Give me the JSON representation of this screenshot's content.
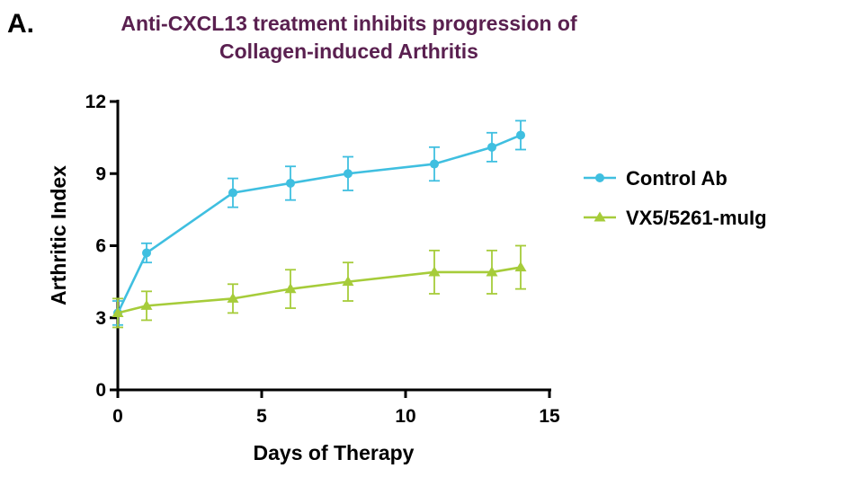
{
  "panel_label": "A.",
  "chart_data": {
    "type": "line",
    "title": "Anti-CXCL13 treatment inhibits progression of Collagen-induced Arthritis",
    "title_lines": [
      "Anti-CXCL13 treatment inhibits progression of",
      "Collagen-induced Arthritis"
    ],
    "title_color": "#5a2050",
    "xlabel": "Days of Therapy",
    "ylabel": "Arthritic Index",
    "xlim": [
      0,
      15
    ],
    "ylim": [
      0,
      12
    ],
    "xticks": [
      0,
      5,
      10,
      15
    ],
    "yticks": [
      0,
      3,
      6,
      9,
      12
    ],
    "grid": false,
    "legend_position": "right",
    "series": [
      {
        "name": "Control Ab",
        "color": "#3fbfe0",
        "marker": "circle",
        "x": [
          0,
          1,
          4,
          6,
          8,
          11,
          13,
          14
        ],
        "y": [
          3.2,
          5.7,
          8.2,
          8.6,
          9.0,
          9.4,
          10.1,
          10.6
        ],
        "error": [
          0.5,
          0.4,
          0.6,
          0.7,
          0.7,
          0.7,
          0.6,
          0.6
        ]
      },
      {
        "name": "VX5/5261-muIg",
        "color": "#a6cc3a",
        "marker": "triangle",
        "x": [
          0,
          1,
          4,
          6,
          8,
          11,
          13,
          14
        ],
        "y": [
          3.2,
          3.5,
          3.8,
          4.2,
          4.5,
          4.9,
          4.9,
          5.1
        ],
        "error": [
          0.6,
          0.6,
          0.6,
          0.8,
          0.8,
          0.9,
          0.9,
          0.9
        ]
      }
    ]
  }
}
